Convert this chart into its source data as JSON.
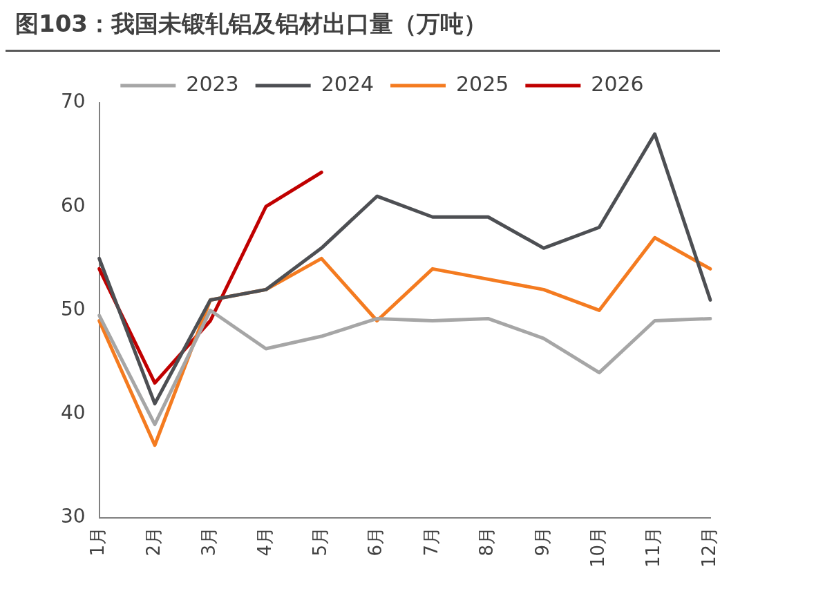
{
  "chart_data": {
    "type": "line",
    "title": "图103：我国未锻轧铝及铝材出口量（万吨）",
    "categories": [
      "1月",
      "2月",
      "3月",
      "4月",
      "5月",
      "6月",
      "7月",
      "8月",
      "9月",
      "10月",
      "11月",
      "12月"
    ],
    "series": [
      {
        "name": "2023",
        "color": "#a6a6a6",
        "values": [
          49.5,
          39,
          50,
          46.3,
          47.5,
          49.2,
          49,
          49.2,
          47.3,
          44,
          49,
          49.2
        ]
      },
      {
        "name": "2024",
        "color": "#4d4f53",
        "values": [
          55,
          41,
          51,
          52,
          56,
          61,
          59,
          59,
          56,
          58,
          67,
          51
        ]
      },
      {
        "name": "2025",
        "color": "#f47b20",
        "values": [
          49,
          37,
          51,
          52,
          55,
          49,
          54,
          53,
          52,
          50,
          57,
          54
        ]
      },
      {
        "name": "2026",
        "color": "#c00000",
        "values": [
          54,
          43,
          49,
          60,
          63.3,
          null,
          null,
          null,
          null,
          null,
          null,
          null
        ]
      }
    ],
    "ylim": [
      30,
      70
    ],
    "yticks": [
      30,
      40,
      50,
      60,
      70
    ],
    "grid": false,
    "legend": "top",
    "marker": "none",
    "line_style": "solid"
  }
}
